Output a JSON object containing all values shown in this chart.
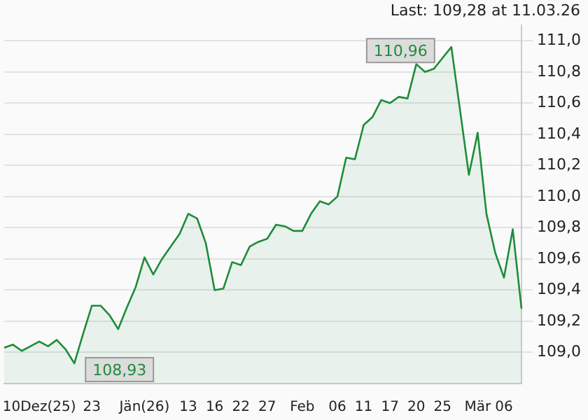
{
  "chart_data": {
    "type": "area",
    "categories": [
      null,
      null,
      null,
      null,
      "10Dez(25)",
      null,
      null,
      null,
      null,
      null,
      "23",
      null,
      null,
      null,
      null,
      null,
      "Jän(26)",
      null,
      null,
      null,
      null,
      "13",
      null,
      null,
      "16",
      null,
      null,
      "22",
      null,
      null,
      "27",
      null,
      null,
      null,
      "Feb",
      null,
      null,
      null,
      "06",
      null,
      null,
      "11",
      null,
      null,
      "17",
      null,
      null,
      "20",
      null,
      null,
      "25",
      null,
      null,
      null,
      "Mär",
      null,
      null,
      "06",
      null,
      null
    ],
    "series": [
      {
        "color": "#1e8c3a",
        "values": [
          109.03,
          109.05,
          109.01,
          109.04,
          109.07,
          109.04,
          109.08,
          109.02,
          108.93,
          109.12,
          109.3,
          109.3,
          109.24,
          109.15,
          109.29,
          109.42,
          109.61,
          109.5,
          109.6,
          109.68,
          109.76,
          109.89,
          109.86,
          109.7,
          109.4,
          109.41,
          109.58,
          109.56,
          109.68,
          109.71,
          109.73,
          109.82,
          109.81,
          109.78,
          109.78,
          109.89,
          109.97,
          109.95,
          110.0,
          110.25,
          110.24,
          110.46,
          110.51,
          110.62,
          110.6,
          110.64,
          110.63,
          110.85,
          110.8,
          110.82,
          110.89,
          110.96,
          110.55,
          110.14,
          110.41,
          109.89,
          109.64,
          109.48,
          109.79,
          109.28
        ]
      }
    ],
    "ylim": [
      108.8,
      111.1
    ],
    "yticks": [
      {
        "value": 109.0,
        "label": "109,0"
      },
      {
        "value": 109.2,
        "label": "109,2"
      },
      {
        "value": 109.4,
        "label": "109,4"
      },
      {
        "value": 109.6,
        "label": "109,6"
      },
      {
        "value": 109.8,
        "label": "109,8"
      },
      {
        "value": 110.0,
        "label": "110,0"
      },
      {
        "value": 110.2,
        "label": "110,2"
      },
      {
        "value": 110.4,
        "label": "110,4"
      },
      {
        "value": 110.6,
        "label": "110,6"
      },
      {
        "value": 110.8,
        "label": "110,8"
      },
      {
        "value": 111.0,
        "label": "111,0"
      }
    ],
    "grid": "y",
    "legend": false,
    "annotations": [
      "Last: 109,28 at 11.03.26",
      "110,96",
      "108,93"
    ]
  }
}
